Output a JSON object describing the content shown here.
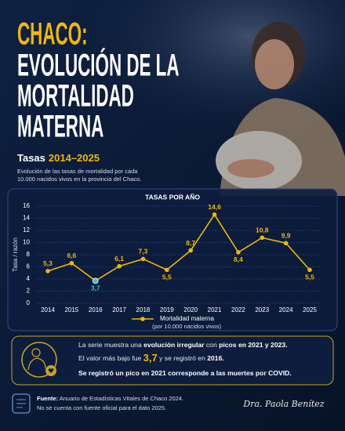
{
  "header": {
    "title_lines": [
      "CHACO:",
      "EVOLUCIÓN DE LA",
      "MORTALIDAD",
      "MATERNA"
    ],
    "subtitle_label": "Tasas",
    "subtitle_years": "2014–2025",
    "description": [
      "Evolución de las tasas de mortalidad por cada",
      "10.000 nacidos vivos en la provincia del Chaco."
    ]
  },
  "chart_data": {
    "type": "line",
    "title": "TASAS POR AÑO",
    "y_label": "Tasa / razón",
    "categories": [
      "2014",
      "2015",
      "2016",
      "2017",
      "2018",
      "2019",
      "2020",
      "2021",
      "2022",
      "2023",
      "2024",
      "2025"
    ],
    "series": [
      {
        "name": "Mortalidad materna",
        "color": "#f2b705",
        "values": [
          5.3,
          6.6,
          3.7,
          6.1,
          7.3,
          5.5,
          8.7,
          14.6,
          8.4,
          10.8,
          9.9,
          5.5
        ],
        "value_labels": [
          "5,3",
          "6,6",
          "3,7",
          "6,1",
          "7,3",
          "5,5",
          "8,7",
          "14,6",
          "8,4",
          "10,8",
          "9,9",
          "5,5"
        ]
      }
    ],
    "legend_subtitle": "(por 10.000 nacidos vivos)",
    "highlight_color": "#35c2c8",
    "ylim": [
      0,
      16
    ],
    "yticks": [
      0,
      2,
      4,
      6,
      8,
      10,
      12,
      14,
      16
    ],
    "grid": true
  },
  "info": {
    "lines": [
      [
        {
          "text": "La serie muestra una ",
          "style": "normal"
        },
        {
          "text": "evolución irregular",
          "style": "bold"
        },
        {
          "text": " con ",
          "style": "normal"
        },
        {
          "text": "picos en 2021 y 2023.",
          "style": "bold"
        }
      ],
      [
        {
          "text": "El valor más bajo fue ",
          "style": "normal"
        },
        {
          "text": "3,7",
          "style": "highlight"
        },
        {
          "text": " y se registró en ",
          "style": "normal"
        },
        {
          "text": "2016.",
          "style": "bold"
        }
      ],
      [
        {
          "text": "Se registró un pico en 2021 corresponde a las muertes por COVID.",
          "style": "bold"
        }
      ]
    ]
  },
  "footer": {
    "source_label": "Fuente:",
    "source_text": " Anuario de Estadísticas Vitales de Chaco 2024.",
    "note": "No se cuenta con fuente oficial para el dato 2025.",
    "signature": "Dra. Paola Benítez"
  }
}
